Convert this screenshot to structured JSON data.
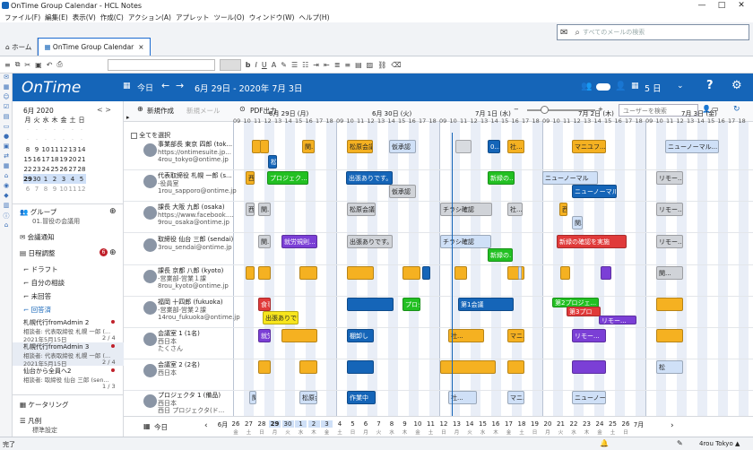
{
  "window": {
    "title": "OnTime Group Calendar - HCL Notes",
    "min": "—",
    "max": "□",
    "close": "✕"
  },
  "menu": [
    "ファイル(F)",
    "編集(E)",
    "表示(V)",
    "作成(C)",
    "アクション(A)",
    "アプレット",
    "ツール(O)",
    "ウィンドウ(W)",
    "ヘルプ(H)"
  ],
  "tabs": [
    {
      "label": "ホーム",
      "active": false
    },
    {
      "label": "OnTime Group Calendar",
      "active": true
    }
  ],
  "search": {
    "placeholder": "すべてのメールの検索"
  },
  "ontime": {
    "logo": "OnTime",
    "today": "今日",
    "range": "6月 29日 - 2020年 7月 3日",
    "days": "5 日",
    "help": "?"
  },
  "actions": {
    "new": "新規作成",
    "new_mail": "新規メール",
    "pdf": "PDF出力",
    "user_search_placeholder": "ユーザーを検索"
  },
  "select_all": "全てを選択",
  "minical": {
    "month": "6月 2020",
    "weekdays": [
      "月",
      "火",
      "水",
      "木",
      "金",
      "土",
      "日"
    ],
    "weeks": [
      [
        "",
        "",
        "",
        "",
        "",
        "",
        ""
      ],
      [
        "",
        "",
        "",
        "",
        "",
        "",
        ""
      ],
      [
        "8",
        "9",
        "10",
        "11",
        "12",
        "13",
        "14"
      ],
      [
        "15",
        "16",
        "17",
        "18",
        "19",
        "20",
        "21"
      ],
      [
        "22",
        "23",
        "24",
        "25",
        "26",
        "27",
        "28"
      ],
      [
        "29",
        "30",
        "1",
        "2",
        "3",
        "4",
        "5"
      ],
      [
        "6",
        "7",
        "8",
        "9",
        "10",
        "11",
        "12"
      ]
    ]
  },
  "sidebar": {
    "group_label": "グループ",
    "group_sub": "01.冒役の会議用",
    "meeting_notice": "会議通知",
    "schedule": "日程調整",
    "schedule_badge": "6",
    "draft": "ドラフト",
    "own": "自分の相談",
    "unanswered": "未回答",
    "answered": "回答済",
    "items": [
      {
        "title": "札幌代行fromAdmin 2",
        "sub": "相談者: 代表取締役 札幌 一郎 (...",
        "date": "2021年5月15日",
        "count": "2 / 4"
      },
      {
        "title": "札幌代行fromAdmin 3",
        "sub": "相談者: 代表取締役 札幌 一郎 (...",
        "date": "2021年5月15日",
        "count": "2 / 4"
      },
      {
        "title": "仙台から全員へ2",
        "sub": "相談者: 取締役 仙台 三郎 (sen...",
        "date": "",
        "count": "1 / 3"
      }
    ],
    "keitai": "ケータリング",
    "hanrei": "凡例",
    "hanrei_sub": "標準設定"
  },
  "days": [
    "6月 29日 (月)",
    "6月 30日 (火)",
    "7月 1日 (水)",
    "7月 2日 (木)",
    "7月 3日 (金)"
  ],
  "hours": [
    "09",
    "10",
    "11",
    "12",
    "13",
    "14",
    "15",
    "16",
    "17",
    "18"
  ],
  "people": [
    {
      "name": "事業部長 東京 四郎 (tok...",
      "l2": "https://ontimesuite.jp...",
      "l3": "4rou_tokyo@ontime.jp"
    },
    {
      "name": "代表取締役 札幌 一郎 (s...",
      "l2": "-役員室",
      "l3": "1rou_sapporo@ontime.jp"
    },
    {
      "name": "課長 大阪 九郎 (osaka)",
      "l2": "https://www.facebook....",
      "l3": "9rou_osaka@ontime.jp"
    },
    {
      "name": "取締役 仙台 三郎 (sendai)",
      "l2": "",
      "l3": "3rou_sendai@ontime.jp"
    },
    {
      "name": "課長 京都 八郎 (kyoto)",
      "l2": "-営業部-営業１課",
      "l3": "8rou_kyoto@ontime.jp"
    },
    {
      "name": "福岡 十四郎 (fukuoka)",
      "l2": "-営業部-営業２課",
      "l3": "14rou_fukuoka@ontime.jp"
    },
    {
      "name": "会議室 1 (1名)",
      "l2": "西日本",
      "l3": "たくさん"
    },
    {
      "name": "会議室 2 (2名)",
      "l2": "西日本",
      "l3": ""
    },
    {
      "name": "プロジェクタ 1 (備品)",
      "l2": "西日本",
      "l3": "西日 プロジェクタ(ド..."
    }
  ],
  "events": [
    {
      "t": "",
      "c": "#f5b121"
    },
    {
      "t": "",
      "c": "#f5b121"
    },
    {
      "t": "松",
      "c": "#1565b8"
    },
    {
      "t": "関...",
      "c": "#f5b121"
    },
    {
      "t": "松原会議",
      "c": "#f5b121"
    },
    {
      "t": "仮承認",
      "c": "#cfe0f7"
    },
    {
      "t": "",
      "c": "#d8dbe0"
    },
    {
      "t": "0...",
      "c": "#1565b8"
    },
    {
      "t": "社...",
      "c": "#f5b121"
    },
    {
      "t": "マニユフ...",
      "c": "#f5b121"
    },
    {
      "t": "ニューノーマル...",
      "c": "#cfe0f7"
    },
    {
      "t": "西",
      "c": "#f5b121"
    },
    {
      "t": "プロジェク...",
      "c": "#22c022"
    },
    {
      "t": "出張ありです。",
      "c": "#1565b8"
    },
    {
      "t": "仮承認",
      "c": "#d0d3d8"
    },
    {
      "t": "新緑の...",
      "c": "#22c022"
    },
    {
      "t": "ニューノーマル",
      "c": "#cfe0f7"
    },
    {
      "t": "ニューノーマル",
      "c": "#1565b8"
    },
    {
      "t": "リモー...",
      "c": "#d0d3d8"
    },
    {
      "t": "西",
      "c": "#d0d3d8"
    },
    {
      "t": "関...",
      "c": "#d0d3d8"
    },
    {
      "t": "松原会議",
      "c": "#d0d3d8"
    },
    {
      "t": "チラシ確認",
      "c": "#d0d3d8"
    },
    {
      "t": "社...",
      "c": "#d0d3d8"
    },
    {
      "t": "西",
      "c": "#f5b121"
    },
    {
      "t": "関...",
      "c": "#cfe0f7"
    },
    {
      "t": "リモー...",
      "c": "#d0d3d8"
    },
    {
      "t": "関...",
      "c": "#d0d3d8"
    },
    {
      "t": "就労規則...",
      "c": "#7b3fd6"
    },
    {
      "t": "出張ありです。",
      "c": "#d0d3d8"
    },
    {
      "t": "チラシ確認",
      "c": "#cfe0f7"
    },
    {
      "t": "新緑の...",
      "c": "#22c022"
    },
    {
      "t": "新緑の確認を実施",
      "c": "#e03a3a"
    },
    {
      "t": "リモー...",
      "c": "#d0d3d8"
    },
    {
      "t": "",
      "c": "#f5b121"
    },
    {
      "t": "",
      "c": "#f5b121"
    },
    {
      "t": "",
      "c": "#f5b121"
    },
    {
      "t": "",
      "c": "#f5b121"
    },
    {
      "t": "",
      "c": "#f5b121"
    },
    {
      "t": "",
      "c": "#1565b8"
    },
    {
      "t": "",
      "c": "#f5b121"
    },
    {
      "t": "",
      "c": "#f5b121"
    },
    {
      "t": "",
      "c": "#cfe0f7"
    },
    {
      "t": "",
      "c": "#f5b121"
    },
    {
      "t": "",
      "c": "#7b3fd6"
    },
    {
      "t": "関...",
      "c": "#d0d3d8"
    },
    {
      "t": "食事制限",
      "c": "#e03a3a"
    },
    {
      "t": "出張ありです。",
      "c": "#f7e51d"
    },
    {
      "t": "",
      "c": "#1565b8"
    },
    {
      "t": "プロジェクトの...",
      "c": "#22c022"
    },
    {
      "t": "第1会議",
      "c": "#1565b8"
    },
    {
      "t": "第2プロジェ...",
      "c": "#22c022"
    },
    {
      "t": "第3プロ",
      "c": "#e03a3a"
    },
    {
      "t": "リモー...",
      "c": "#7b3fd6"
    },
    {
      "t": "",
      "c": "#f5b121"
    },
    {
      "t": "就労規則...",
      "c": "#7b3fd6"
    },
    {
      "t": "",
      "c": "#f5b121"
    },
    {
      "t": "棚卸し",
      "c": "#1565b8"
    },
    {
      "t": "社...",
      "c": "#f5b121"
    },
    {
      "t": "マニユフ...",
      "c": "#f5b121"
    },
    {
      "t": "リモー...",
      "c": "#7b3fd6"
    },
    {
      "t": "",
      "c": "#f5b121"
    },
    {
      "t": "",
      "c": "#f5b121"
    },
    {
      "t": "",
      "c": "#f5b121"
    },
    {
      "t": "",
      "c": "#1565b8"
    },
    {
      "t": "",
      "c": "#f5b121"
    },
    {
      "t": "",
      "c": "#f5b121"
    },
    {
      "t": "",
      "c": "#7b3fd6"
    },
    {
      "t": "松",
      "c": "#cfe0f7"
    },
    {
      "t": "関...",
      "c": "#cfe0f7"
    },
    {
      "t": "松原会議",
      "c": "#cfe0f7"
    },
    {
      "t": "作業中",
      "c": "#1565b8"
    },
    {
      "t": "社...",
      "c": "#cfe0f7"
    },
    {
      "t": "マニユフ...",
      "c": "#cfe0f7"
    },
    {
      "t": "ニューノーマル...",
      "c": "#cfe0f7"
    }
  ],
  "footer": {
    "today": "今日",
    "dates": [
      "6月",
      "26",
      "27",
      "28",
      "29",
      "30",
      "1",
      "2",
      "3",
      "4",
      "5",
      "6",
      "7",
      "8",
      "9",
      "10",
      "11",
      "12",
      "13",
      "14",
      "15",
      "16",
      "17",
      "18",
      "19",
      "20",
      "21",
      "22",
      "23",
      "24",
      "25",
      "26",
      "7月"
    ],
    "wd": [
      "",
      "金",
      "土",
      "日",
      "月",
      "火",
      "水",
      "木",
      "金",
      "土",
      "日",
      "月",
      "火",
      "水",
      "木",
      "金",
      "土",
      "日",
      "月",
      "火",
      "水",
      "木",
      "金",
      "土",
      "日",
      "月",
      "火",
      "水",
      "木",
      "金",
      "土",
      "日",
      ""
    ]
  },
  "status": {
    "left": "完了",
    "right": "4rou Tokyo ▲"
  }
}
